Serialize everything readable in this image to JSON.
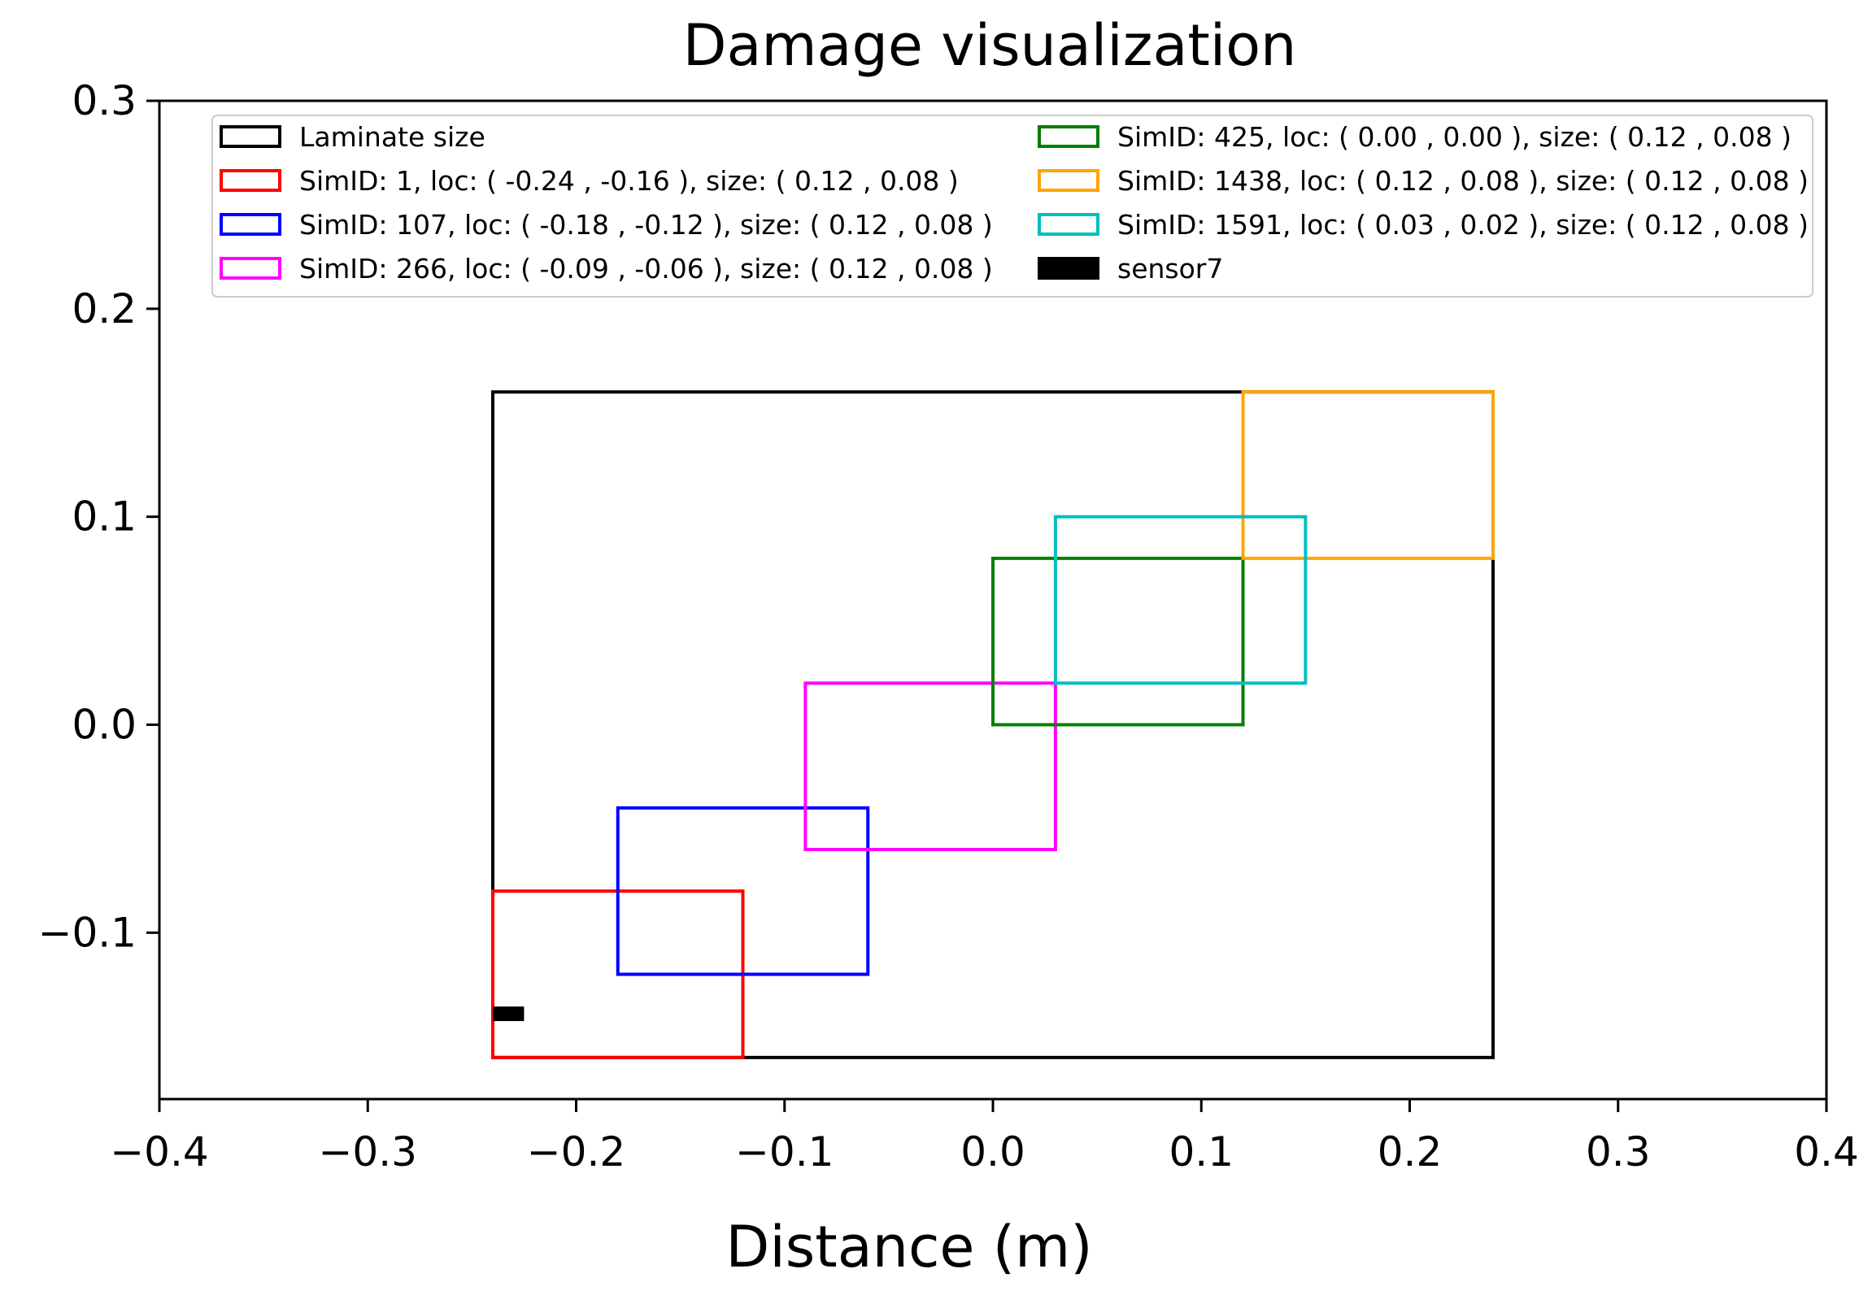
{
  "chart_data": {
    "type": "rectangles",
    "title": "Damage visualization",
    "xlabel": "Distance (m)",
    "ylabel": "",
    "xlim": [
      -0.4,
      0.4
    ],
    "ylim": [
      -0.18,
      0.3
    ],
    "xticks": [
      -0.4,
      -0.3,
      -0.2,
      -0.1,
      0.0,
      0.1,
      0.2,
      0.3,
      0.4
    ],
    "xtick_labels": [
      "−0.4",
      "−0.3",
      "−0.2",
      "−0.1",
      "0.0",
      "0.1",
      "0.2",
      "0.3",
      "0.4"
    ],
    "yticks": [
      -0.1,
      0.0,
      0.1,
      0.2,
      0.3
    ],
    "ytick_labels": [
      "−0.1",
      "0.0",
      "0.1",
      "0.2",
      "0.3"
    ],
    "grid": false,
    "legend_position": "top",
    "rectangles": [
      {
        "label": "Laminate size",
        "x": -0.24,
        "y": -0.16,
        "width": 0.48,
        "height": 0.32,
        "color": "#000000"
      },
      {
        "label": "SimID: 1, loc: ( -0.24 , -0.16 ), size: ( 0.12 , 0.08 )",
        "x": -0.24,
        "y": -0.16,
        "width": 0.12,
        "height": 0.08,
        "color": "#ff0000"
      },
      {
        "label": "SimID: 107, loc: ( -0.18 , -0.12 ), size: ( 0.12 , 0.08 )",
        "x": -0.18,
        "y": -0.12,
        "width": 0.12,
        "height": 0.08,
        "color": "#0000ff"
      },
      {
        "label": "SimID: 266, loc: ( -0.09 , -0.06 ), size: ( 0.12 , 0.08 )",
        "x": -0.09,
        "y": -0.06,
        "width": 0.12,
        "height": 0.08,
        "color": "#ff00ff"
      },
      {
        "label": "SimID: 425, loc: ( 0.00 , 0.00 ), size: ( 0.12 , 0.08 )",
        "x": 0.0,
        "y": 0.0,
        "width": 0.12,
        "height": 0.08,
        "color": "#008000"
      },
      {
        "label": "SimID: 1438, loc: ( 0.12 , 0.08 ), size: ( 0.12 , 0.08 )",
        "x": 0.12,
        "y": 0.08,
        "width": 0.12,
        "height": 0.08,
        "color": "#ffa500"
      },
      {
        "label": "SimID: 1591, loc: ( 0.03 , 0.02 ), size: ( 0.12 , 0.08 )",
        "x": 0.03,
        "y": 0.02,
        "width": 0.12,
        "height": 0.08,
        "color": "#00bfbf"
      }
    ],
    "sensors": [
      {
        "label": "sensor7",
        "x": -0.24,
        "y": -0.1425,
        "width": 0.015,
        "height": 0.007,
        "color": "#000000"
      }
    ]
  }
}
